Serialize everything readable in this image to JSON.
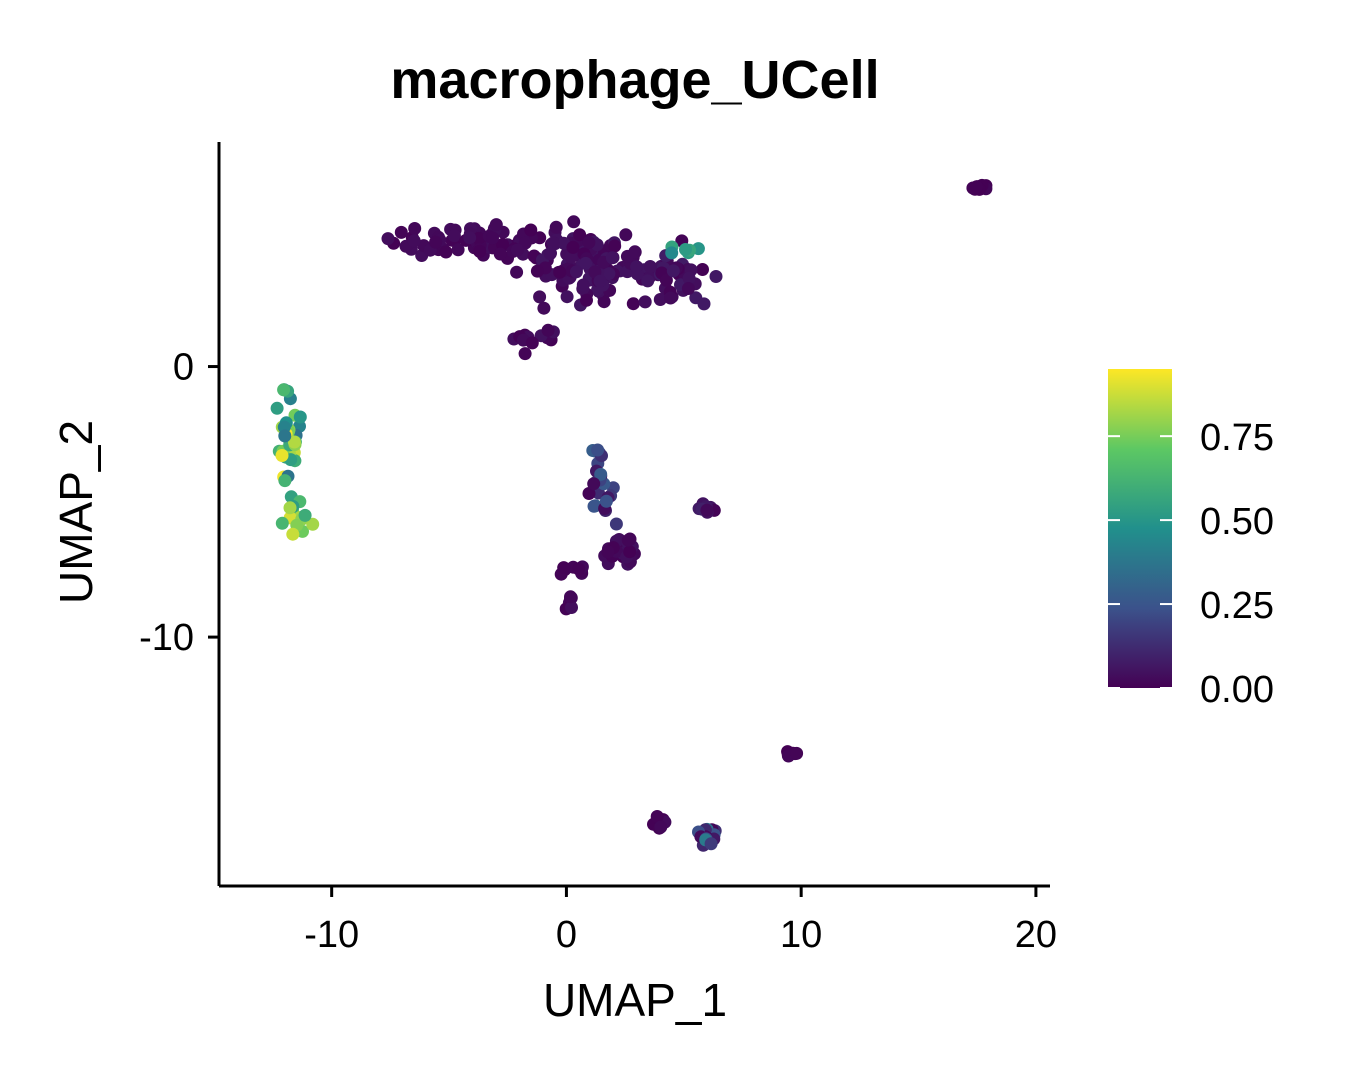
{
  "chart_data": {
    "type": "scatter",
    "title": "macrophage_UCell",
    "xlabel": "UMAP_1",
    "ylabel": "UMAP_2",
    "xlim": [
      -14.8,
      20.6
    ],
    "ylim": [
      -19.2,
      8.3
    ],
    "xticks": [
      -10,
      0,
      10,
      20
    ],
    "xtick_labels": [
      "-10",
      "0",
      "10",
      "20"
    ],
    "yticks": [
      0,
      -10
    ],
    "ytick_labels": [
      "0",
      "-10"
    ],
    "grid": false,
    "legend": {
      "placement": "right",
      "type": "colorbar",
      "ticks": [
        0,
        0.25,
        0.5,
        0.75
      ],
      "tick_labels": [
        "0.00",
        "0.25",
        "0.50",
        "0.75"
      ],
      "range": [
        0,
        0.95
      ],
      "colormap": [
        "#440154",
        "#3b528b",
        "#21908c",
        "#5dc863",
        "#fde725"
      ]
    },
    "clusters": [
      {
        "center": [
          -11.8,
          -3.0
        ],
        "spread": [
          0.35,
          1.6
        ],
        "n": 40,
        "score_range": [
          0.3,
          0.95
        ]
      },
      {
        "center": [
          -11.5,
          -5.8
        ],
        "spread": [
          0.5,
          0.5
        ],
        "n": 10,
        "score_range": [
          0.5,
          0.9
        ]
      },
      {
        "center": [
          -3.5,
          4.6
        ],
        "spread": [
          2.3,
          0.4
        ],
        "n": 80,
        "score_range": [
          0.0,
          0.04
        ]
      },
      {
        "center": [
          1.0,
          3.8
        ],
        "spread": [
          1.8,
          1.0
        ],
        "n": 110,
        "score_range": [
          0.0,
          0.06
        ]
      },
      {
        "center": [
          4.5,
          3.3
        ],
        "spread": [
          1.2,
          0.8
        ],
        "n": 40,
        "score_range": [
          0.0,
          0.08
        ]
      },
      {
        "center": [
          5.0,
          4.3
        ],
        "spread": [
          0.5,
          0.3
        ],
        "n": 6,
        "score_range": [
          0.4,
          0.6
        ]
      },
      {
        "center": [
          -1.5,
          1.2
        ],
        "spread": [
          0.8,
          0.5
        ],
        "n": 12,
        "score_range": [
          0.0,
          0.05
        ]
      },
      {
        "center": [
          1.3,
          -4.2
        ],
        "spread": [
          0.6,
          1.0
        ],
        "n": 24,
        "score_range": [
          0.0,
          0.3
        ]
      },
      {
        "center": [
          2.2,
          -6.8
        ],
        "spread": [
          0.5,
          0.4
        ],
        "n": 30,
        "score_range": [
          0.0,
          0.05
        ]
      },
      {
        "center": [
          0.2,
          -7.5
        ],
        "spread": [
          0.5,
          0.2
        ],
        "n": 8,
        "score_range": [
          0.0,
          0.03
        ]
      },
      {
        "center": [
          0.1,
          -8.8
        ],
        "spread": [
          0.2,
          0.3
        ],
        "n": 7,
        "score_range": [
          0.0,
          0.05
        ]
      },
      {
        "center": [
          6.0,
          -5.3
        ],
        "spread": [
          0.45,
          0.15
        ],
        "n": 8,
        "score_range": [
          0.0,
          0.1
        ]
      },
      {
        "center": [
          17.5,
          6.6
        ],
        "spread": [
          0.45,
          0.15
        ],
        "n": 9,
        "score_range": [
          0.0,
          0.02
        ]
      },
      {
        "center": [
          9.5,
          -14.4
        ],
        "spread": [
          0.2,
          0.2
        ],
        "n": 6,
        "score_range": [
          0.0,
          0.02
        ]
      },
      {
        "center": [
          3.9,
          -16.9
        ],
        "spread": [
          0.2,
          0.2
        ],
        "n": 6,
        "score_range": [
          0.0,
          0.03
        ]
      },
      {
        "center": [
          6.0,
          -17.3
        ],
        "spread": [
          0.4,
          0.3
        ],
        "n": 16,
        "score_range": [
          0.0,
          0.4
        ]
      }
    ]
  }
}
